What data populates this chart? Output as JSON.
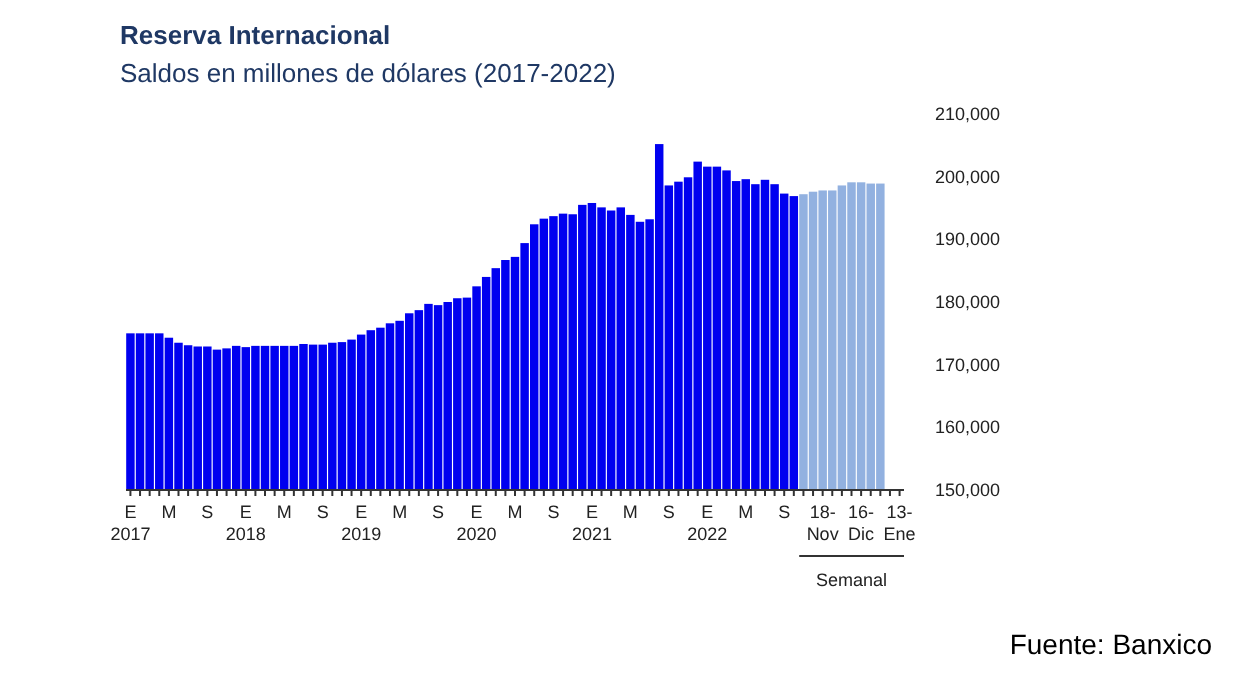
{
  "chart_data": {
    "type": "bar",
    "title": "Reserva Internacional",
    "subtitle": "Saldos en millones de dólares (2017-2022)",
    "categories": [
      "E\n2017",
      null,
      null,
      null,
      "M",
      null,
      null,
      null,
      "S",
      null,
      null,
      null,
      "E\n2018",
      null,
      null,
      null,
      "M",
      null,
      null,
      null,
      "S",
      null,
      null,
      null,
      "E\n2019",
      null,
      null,
      null,
      "M",
      null,
      null,
      null,
      "S",
      null,
      null,
      null,
      "E\n2020",
      null,
      null,
      null,
      "M",
      null,
      null,
      null,
      "S",
      null,
      null,
      null,
      "E\n2021",
      null,
      null,
      null,
      "M",
      null,
      null,
      null,
      "S",
      null,
      null,
      null,
      "E\n2022",
      null,
      null,
      null,
      "M",
      null,
      null,
      null,
      "S",
      null,
      null,
      null,
      "18-\nNov",
      null,
      null,
      null,
      "16-\nDic",
      null,
      null,
      null,
      "13-\nEne"
    ],
    "series": [
      {
        "color": "#0000f0",
        "values": [
          175000,
          175000,
          175000,
          175000,
          174300,
          173500,
          173100,
          172900,
          172900,
          172400,
          172600,
          173000,
          172800,
          173000,
          173000,
          173000,
          173000,
          173000,
          173300,
          173200,
          173200,
          173500,
          173600,
          174000,
          174800,
          175500,
          175900,
          176600,
          177000,
          178200,
          178700,
          179700,
          179500,
          180000,
          180600,
          180700,
          182500,
          184000,
          185400,
          186700,
          187200,
          189400,
          192400,
          193300,
          193700,
          194100,
          194000,
          195500,
          195800,
          195100,
          194600,
          195100,
          193900,
          192800,
          193200,
          205200,
          198600,
          199200,
          199900,
          202400,
          201600,
          201600,
          201000,
          199300,
          199600,
          198800,
          199500,
          198800,
          197300,
          196900,
          null,
          null,
          null,
          null,
          null,
          null,
          null,
          null,
          null,
          null,
          null
        ]
      },
      {
        "color": "#92b1e0",
        "values": [
          null,
          null,
          null,
          null,
          null,
          null,
          null,
          null,
          null,
          null,
          null,
          null,
          null,
          null,
          null,
          null,
          null,
          null,
          null,
          null,
          null,
          null,
          null,
          null,
          null,
          null,
          null,
          null,
          null,
          null,
          null,
          null,
          null,
          null,
          null,
          null,
          null,
          null,
          null,
          null,
          null,
          null,
          null,
          null,
          null,
          null,
          null,
          null,
          null,
          null,
          null,
          null,
          null,
          null,
          null,
          null,
          null,
          null,
          null,
          null,
          null,
          null,
          null,
          null,
          null,
          null,
          null,
          null,
          null,
          null,
          197200,
          197600,
          197800,
          197800,
          198600,
          199100,
          199100,
          198900,
          198900,
          null,
          null
        ]
      }
    ],
    "ylim": [
      150000,
      210000
    ],
    "yticks": [
      {
        "value": 150000,
        "label": "150,000"
      },
      {
        "value": 160000,
        "label": "160,000"
      },
      {
        "value": 170000,
        "label": "170,000"
      },
      {
        "value": 180000,
        "label": "180,000"
      },
      {
        "value": 190000,
        "label": "190,000"
      },
      {
        "value": 200000,
        "label": "200,000"
      },
      {
        "value": 210000,
        "label": "210,000"
      }
    ],
    "annotations": [
      "Semanal",
      "Fuente: Banxico"
    ]
  }
}
